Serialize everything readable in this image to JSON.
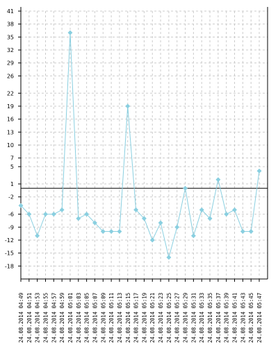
{
  "chart_data": {
    "type": "line",
    "title": "",
    "xlabel": "",
    "ylabel": "",
    "ylim": [
      -21,
      41
    ],
    "y_ticks": [
      41,
      38,
      35,
      32,
      29,
      26,
      22,
      19,
      16,
      13,
      10,
      7,
      5,
      1,
      -2,
      -6,
      -9,
      -12,
      -15,
      -18
    ],
    "reference_line": 0,
    "grid": "horizontal dashed",
    "colors": {
      "series": "#89cfe0",
      "grid": "#cccccc",
      "axis": "#000000"
    },
    "categories": [
      "24.08.2014 04:49",
      "24.08.2014 04:51",
      "24.08.2014 04:53",
      "24.08.2014 04:55",
      "24.08.2014 04:57",
      "24.08.2014 04:59",
      "24.08.2014 05:01",
      "24.08.2014 05:03",
      "24.08.2014 05:05",
      "24.08.2014 05:07",
      "24.08.2014 05:09",
      "24.08.2014 05:11",
      "24.08.2014 05:13",
      "24.08.2014 05:15",
      "24.08.2014 05:17",
      "24.08.2014 05:19",
      "24.08.2014 05:21",
      "24.08.2014 05:23",
      "24.08.2014 05:25",
      "24.08.2014 05:27",
      "24.08.2014 05:29",
      "24.08.2014 05:31",
      "24.08.2014 05:33",
      "24.08.2014 05:35",
      "24.08.2014 05:37",
      "24.08.2014 05:39",
      "24.08.2014 05:41",
      "24.08.2014 05:43",
      "24.08.2014 05:45",
      "24.08.2014 05:47"
    ],
    "series": [
      {
        "values": [
          -4,
          -6,
          -11,
          -6,
          -6,
          -5,
          36,
          -7,
          -6,
          -8,
          -10,
          -10,
          -10,
          19,
          -5,
          -7,
          -12,
          -8,
          -16,
          -9,
          0,
          -11,
          -5,
          -7,
          2,
          -6,
          -5,
          -10,
          -10,
          4
        ]
      }
    ]
  }
}
